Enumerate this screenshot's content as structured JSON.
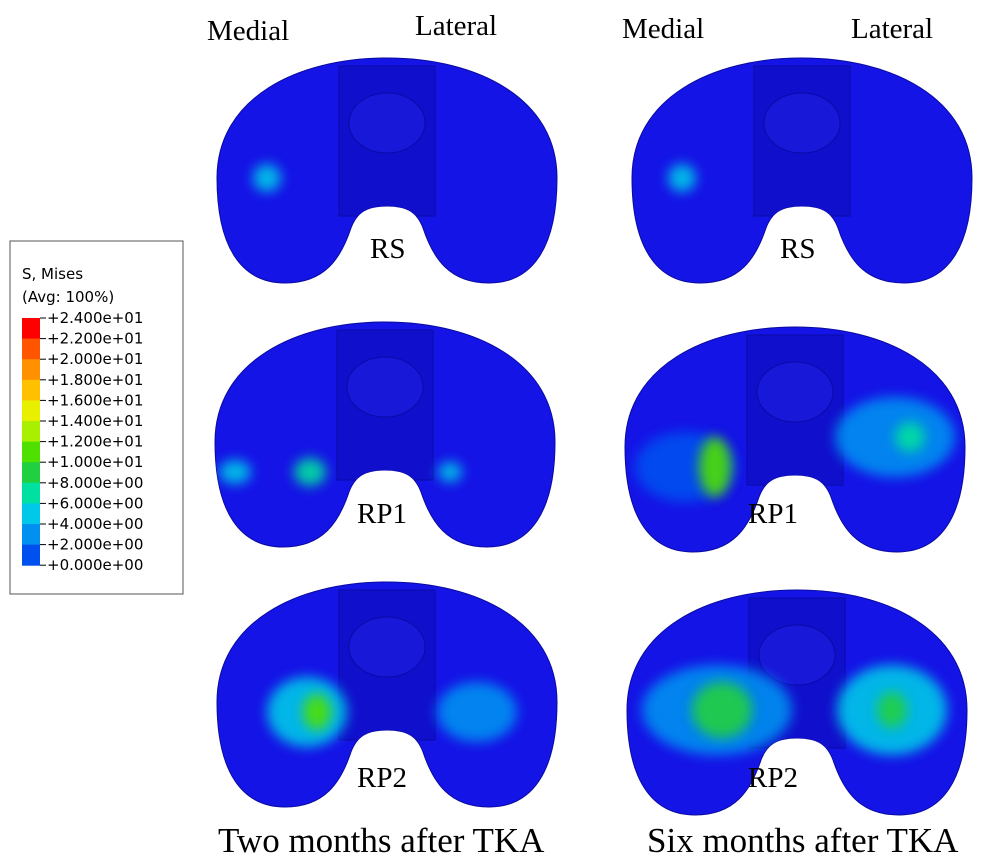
{
  "legend": {
    "title": "S, Mises",
    "subtitle": "(Avg: 100%)",
    "labels": [
      "+2.400e+01",
      "+2.200e+01",
      "+2.000e+01",
      "+1.800e+01",
      "+1.600e+01",
      "+1.400e+01",
      "+1.200e+01",
      "+1.000e+01",
      "+8.000e+00",
      "+6.000e+00",
      "+4.000e+00",
      "+2.000e+00",
      "+0.000e+00"
    ],
    "colors": [
      "#ff0000",
      "#ff5500",
      "#ff9000",
      "#ffc000",
      "#e8f000",
      "#a8f000",
      "#50e000",
      "#20d040",
      "#00e0a0",
      "#00c8e8",
      "#0090f0",
      "#0050f0",
      "#0000ff"
    ]
  },
  "columns": [
    {
      "medial": "Medial",
      "lateral": "Lateral",
      "panels": [
        "RS",
        "RP1",
        "RP2"
      ],
      "caption": "Two months after TKA"
    },
    {
      "medial": "Medial",
      "lateral": "Lateral",
      "panels": [
        "RS",
        "RP1",
        "RP2"
      ],
      "caption": "Six months after TKA"
    }
  ]
}
